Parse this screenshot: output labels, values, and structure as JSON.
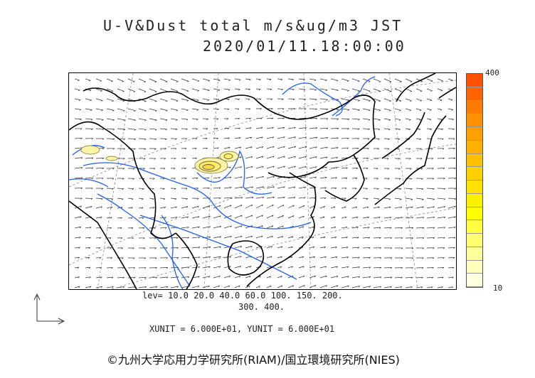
{
  "title": "U-V&Dust total m/s&ug/m3 JST",
  "datetime": "2020/01/11.18:00:00",
  "colorbar": {
    "max_label": "400",
    "min_label": "10",
    "colors": [
      "#ffffe0",
      "#ffffc0",
      "#ffff9a",
      "#ffff70",
      "#ffff40",
      "#ffff00",
      "#fff000",
      "#ffe000",
      "#ffd000",
      "#ffc000",
      "#ffb000",
      "#ffa000",
      "#ff9000",
      "#ff7a00",
      "#ff6400",
      "#ff5000"
    ]
  },
  "levels_line1": "lev= 10.0 20.0 40.0 60.0 100. 150. 200.",
  "levels_line2": "300. 400.",
  "units_line": "XUNIT = 6.000E+01, YUNIT = 6.000E+01",
  "copyright": "©九州大学応用力学研究所(RIAM)/国立環境研究所(NIES)",
  "colors": {
    "coast": "#000000",
    "river": "#1f5fff",
    "grid": "#888888",
    "arrow": "#333333",
    "dust_fill": "#fff3a8",
    "dust_line": "#8a8a40"
  }
}
